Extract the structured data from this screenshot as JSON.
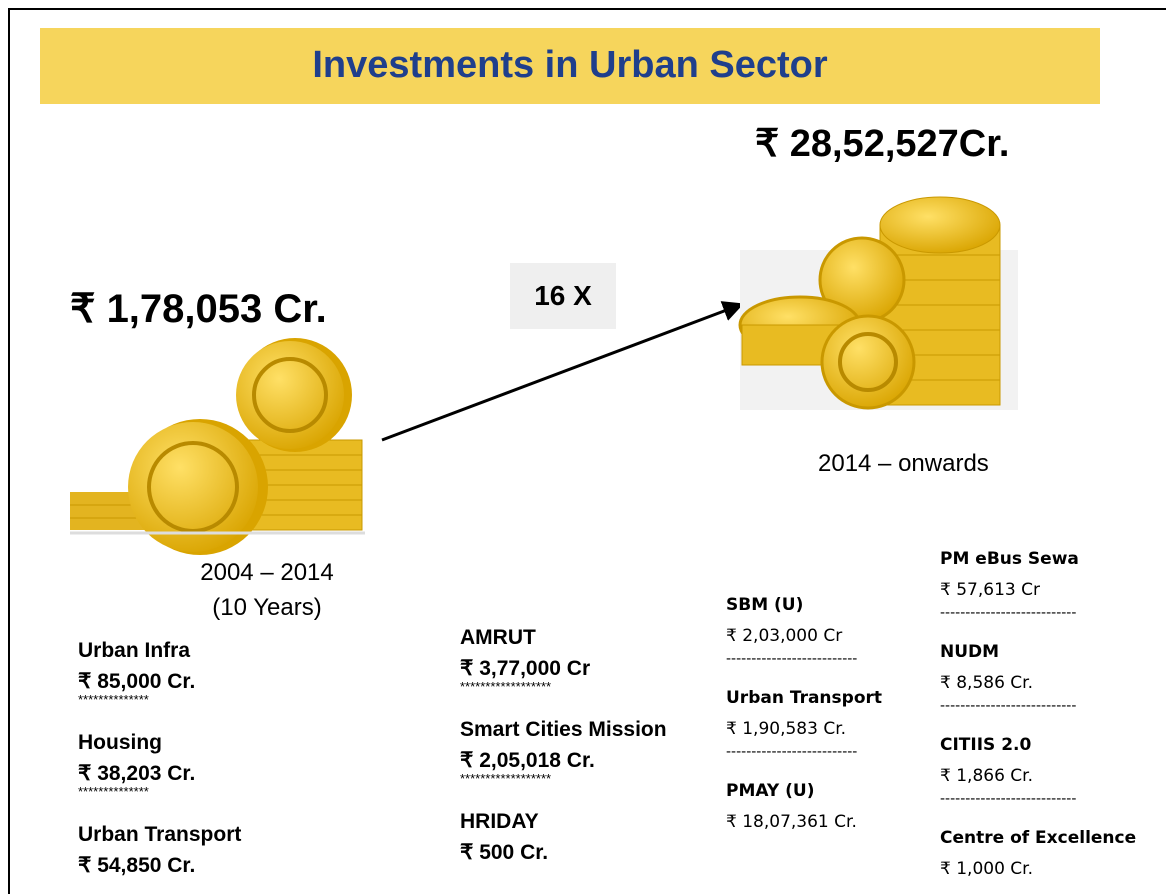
{
  "title": "Investments in Urban Sector",
  "before": {
    "total": "₹ 1,78,053 Cr.",
    "period": "2004 – 2014",
    "duration": "(10 Years)"
  },
  "after": {
    "total": "₹ 28,52,527Cr.",
    "period": "2014 – onwards"
  },
  "growth": "16 X",
  "columns": [
    {
      "separator": "**************",
      "items": [
        {
          "name": "Urban Infra",
          "amount": "₹ 85,000 Cr."
        },
        {
          "name": "Housing",
          "amount": "₹ 38,203 Cr."
        },
        {
          "name": "Urban Transport",
          "amount": "₹ 54,850 Cr."
        }
      ]
    },
    {
      "separator": "******************",
      "items": [
        {
          "name": "AMRUT",
          "amount": "₹ 3,77,000 Cr"
        },
        {
          "name": "Smart Cities Mission",
          "amount": "₹ 2,05,018 Cr."
        },
        {
          "name": "HRIDAY",
          "amount": "₹ 500 Cr."
        }
      ]
    },
    {
      "separator": "--------------------------",
      "items": [
        {
          "name": "SBM (U)",
          "amount": "₹ 2,03,000 Cr"
        },
        {
          "name": "Urban Transport",
          "amount": "₹ 1,90,583 Cr."
        },
        {
          "name": "PMAY (U)",
          "amount": "₹ 18,07,361 Cr."
        }
      ]
    },
    {
      "separator": "---------------------------",
      "items": [
        {
          "name": "PM eBus Sewa",
          "amount": "₹ 57,613 Cr"
        },
        {
          "name": "NUDM",
          "amount": "₹ 8,586 Cr."
        },
        {
          "name": "CITIIS 2.0",
          "amount": "₹ 1,866 Cr."
        },
        {
          "name": "Centre of Excellence",
          "amount": "₹ 1,000 Cr."
        }
      ]
    }
  ]
}
